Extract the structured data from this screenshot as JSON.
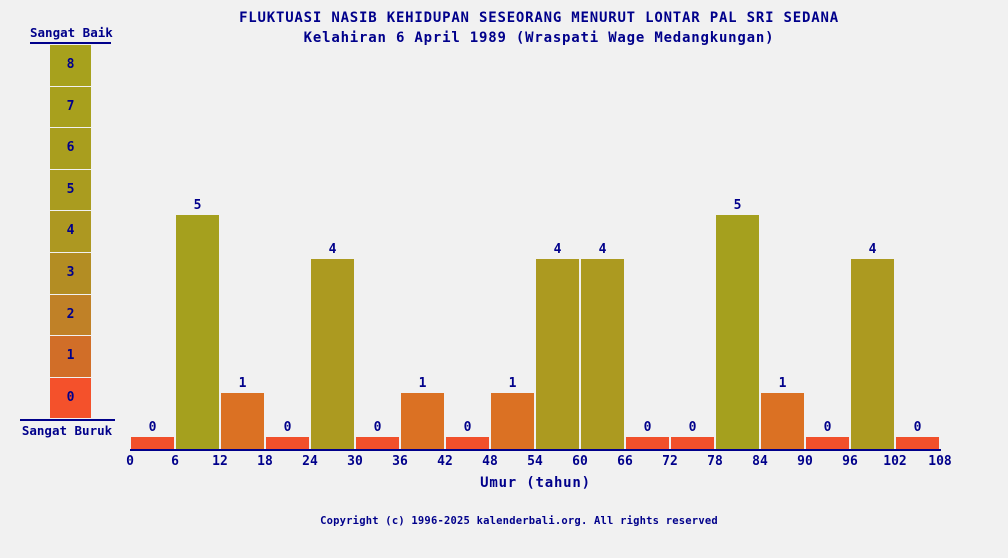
{
  "page": {
    "background_color": "#F1F1F1",
    "text_color": "#00008B"
  },
  "title": {
    "line1": "FLUKTUASI NASIB KEHIDUPAN SESEORANG MENURUT LONTAR PAL SRI SEDANA",
    "line2": "Kelahiran 6 April 1989 (Wraspati Wage Medangkungan)"
  },
  "scale": {
    "top_label": "Sangat Baik",
    "bottom_label": "Sangat Buruk",
    "cells": [
      {
        "value": "8",
        "color": "#A7A11D"
      },
      {
        "value": "7",
        "color": "#A8A01D"
      },
      {
        "value": "6",
        "color": "#A99E1E"
      },
      {
        "value": "5",
        "color": "#AA9C1F"
      },
      {
        "value": "4",
        "color": "#AD9821"
      },
      {
        "value": "3",
        "color": "#B38D23"
      },
      {
        "value": "2",
        "color": "#C08127"
      },
      {
        "value": "1",
        "color": "#D16E28"
      },
      {
        "value": "0",
        "color": "#F4512B"
      }
    ]
  },
  "chart_data": {
    "type": "bar",
    "title": "FLUKTUASI NASIB KEHIDUPAN SESEORANG MENURUT LONTAR PAL SRI SEDANA",
    "subtitle": "Kelahiran 6 April 1989 (Wraspati Wage Medangkungan)",
    "xlabel": "Umur (tahun)",
    "ylabel": "",
    "ylim": [
      0,
      8
    ],
    "grid": false,
    "legend": "none",
    "x_tick_labels": [
      "0",
      "6",
      "12",
      "18",
      "24",
      "30",
      "36",
      "42",
      "48",
      "54",
      "60",
      "66",
      "72",
      "78",
      "84",
      "90",
      "96",
      "102",
      "108"
    ],
    "bar_age_ranges": [
      [
        0,
        6
      ],
      [
        6,
        12
      ],
      [
        12,
        18
      ],
      [
        18,
        24
      ],
      [
        24,
        30
      ],
      [
        30,
        36
      ],
      [
        36,
        42
      ],
      [
        42,
        48
      ],
      [
        48,
        54
      ],
      [
        54,
        60
      ],
      [
        60,
        66
      ],
      [
        66,
        72
      ],
      [
        72,
        78
      ],
      [
        78,
        84
      ],
      [
        84,
        90
      ],
      [
        90,
        96
      ],
      [
        96,
        102
      ],
      [
        102,
        108
      ]
    ],
    "values": [
      0,
      5,
      1,
      0,
      4,
      0,
      1,
      0,
      1,
      4,
      4,
      0,
      0,
      5,
      1,
      0,
      4,
      0
    ],
    "bar_colors": [
      "#F1502B",
      "#A5A01E",
      "#DB7123",
      "#F1502B",
      "#AC9A20",
      "#F1502B",
      "#DB7123",
      "#F1502B",
      "#DB7123",
      "#AC9A20",
      "#AC9A20",
      "#F1502B",
      "#F1502B",
      "#A5A01E",
      "#DB7123",
      "#F1502B",
      "#AC9A20",
      "#F1502B"
    ]
  },
  "footer": {
    "copyright": "Copyright (c) 1996-2025 kalenderbali.org. All rights reserved"
  }
}
